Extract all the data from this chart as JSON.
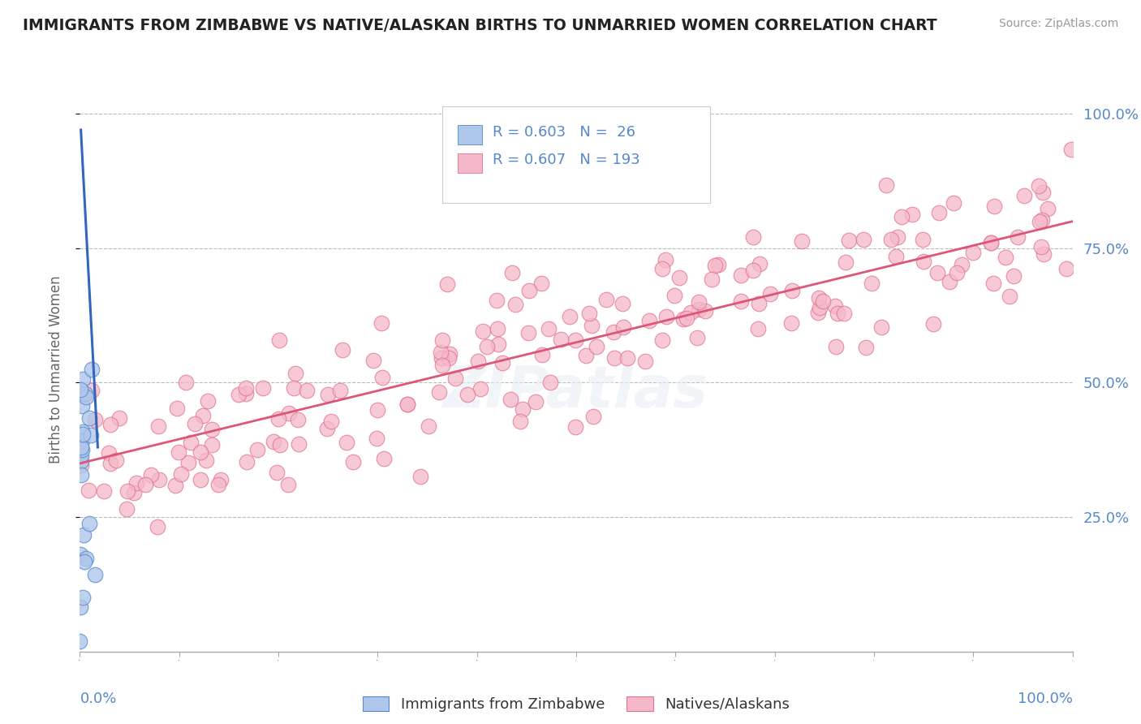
{
  "title": "IMMIGRANTS FROM ZIMBABWE VS NATIVE/ALASKAN BIRTHS TO UNMARRIED WOMEN CORRELATION CHART",
  "source": "Source: ZipAtlas.com",
  "ylabel": "Births to Unmarried Women",
  "legend_label_blue": "Immigrants from Zimbabwe",
  "legend_label_pink": "Natives/Alaskans",
  "blue_fill": "#aec6ea",
  "blue_edge": "#5588cc",
  "pink_fill": "#f5b8c8",
  "pink_edge": "#e07090",
  "blue_line_color": "#3366bb",
  "pink_line_color": "#dd5577",
  "axis_label_color": "#5588cc",
  "title_color": "#222222",
  "source_color": "#999999",
  "grid_color": "#bbbbbb",
  "background_color": "#ffffff",
  "legend_r_blue": "R = 0.603",
  "legend_n_blue": "N =  26",
  "legend_r_pink": "R = 0.607",
  "legend_n_pink": "N = 193"
}
